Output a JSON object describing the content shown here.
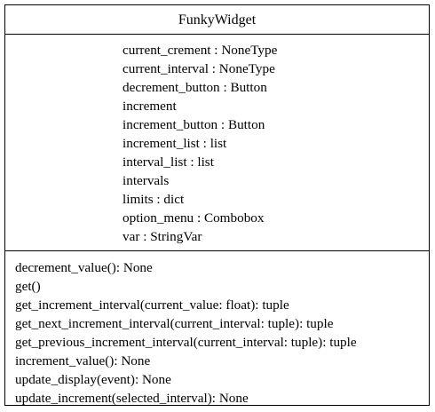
{
  "class_name": "FunkyWidget",
  "attributes": [
    "current_crement : NoneType",
    "current_interval : NoneType",
    "decrement_button : Button",
    "increment",
    "increment_button : Button",
    "increment_list : list",
    "interval_list : list",
    "intervals",
    "limits : dict",
    "option_menu : Combobox",
    "var : StringVar"
  ],
  "methods": [
    "decrement_value(): None",
    "get()",
    "get_increment_interval(current_value: float): tuple",
    "get_next_increment_interval(current_interval: tuple): tuple",
    "get_previous_increment_interval(current_interval: tuple): tuple",
    "increment_value(): None",
    "update_display(event): None",
    "update_increment(selected_interval): None"
  ]
}
